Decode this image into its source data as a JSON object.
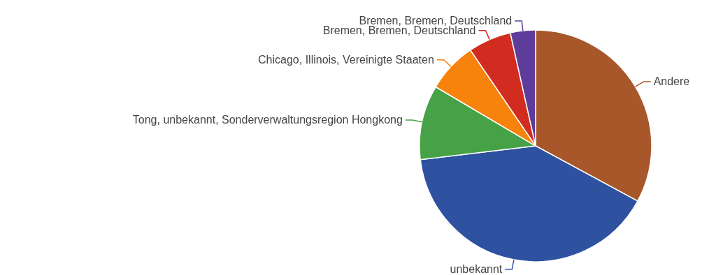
{
  "chart_data": {
    "type": "pie",
    "categories": [
      "Andere",
      "unbekannt",
      "Tong, unbekannt, Sonderverwaltungsregion Hongkong",
      "Chicago, Illinois, Vereinigte Staaten",
      "Bremen, Bremen, Deutschland",
      "Bremen, Bremen, Deutschland"
    ],
    "values": [
      32.9,
      40.2,
      10.4,
      7,
      6,
      3.5
    ],
    "colors": [
      "#a8572a",
      "#2f52a0",
      "#46a147",
      "#f7820c",
      "#d12c1f",
      "#5e3c99"
    ],
    "legend": false
  }
}
